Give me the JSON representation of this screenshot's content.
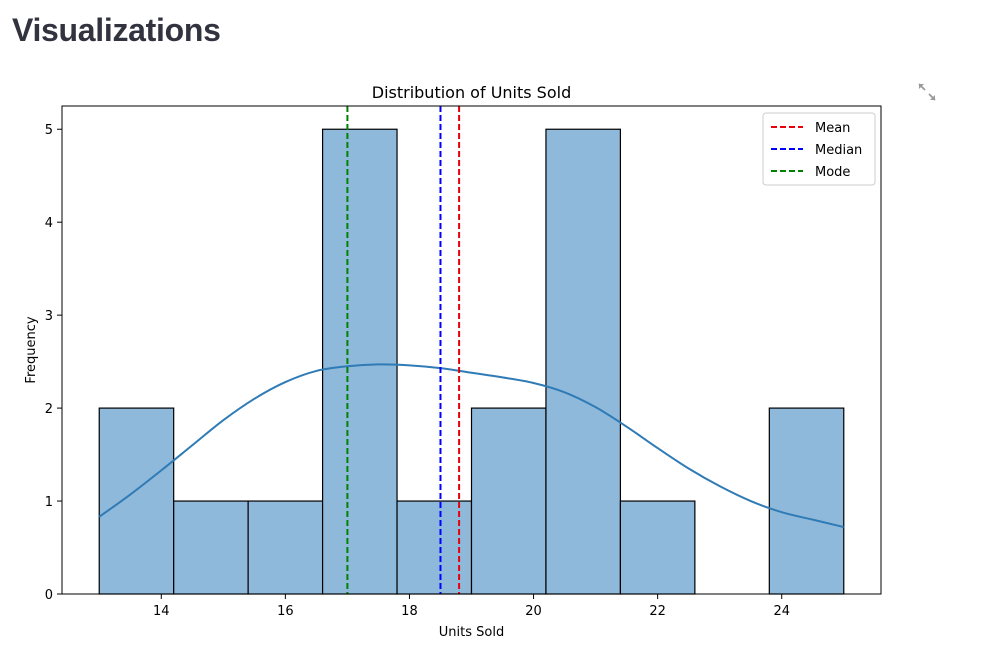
{
  "page": {
    "title": "Visualizations",
    "expand_icon": "expand-arrows-icon"
  },
  "chart_data": {
    "type": "bar",
    "title": "Distribution of Units Sold",
    "xlabel": "Units Sold",
    "ylabel": "Frequency",
    "xlim": [
      12.4,
      25.6
    ],
    "ylim": [
      0,
      5.25
    ],
    "xticks": [
      14,
      16,
      18,
      20,
      22,
      24
    ],
    "yticks": [
      0,
      1,
      2,
      3,
      4,
      5
    ],
    "bin_edges": [
      13,
      14.2,
      15.4,
      16.6,
      17.8,
      19,
      20.2,
      21.4,
      22.6,
      23.8,
      25
    ],
    "counts": [
      2,
      1,
      1,
      5,
      1,
      2,
      5,
      1,
      0,
      2
    ],
    "bar_color": "#8fb9db",
    "edge_color": "#000000",
    "kde": {
      "color": "#2f7bb6",
      "x": [
        13,
        13.5,
        14,
        14.5,
        15,
        15.5,
        16,
        16.5,
        17,
        17.5,
        18,
        18.5,
        19,
        19.5,
        20,
        20.5,
        21,
        21.5,
        22,
        22.5,
        23,
        23.5,
        24,
        24.5,
        25
      ],
      "y": [
        0.83,
        1.07,
        1.33,
        1.6,
        1.87,
        2.1,
        2.28,
        2.4,
        2.45,
        2.47,
        2.46,
        2.43,
        2.38,
        2.33,
        2.27,
        2.17,
        2.01,
        1.8,
        1.57,
        1.35,
        1.16,
        1.0,
        0.88,
        0.8,
        0.72
      ]
    },
    "lines": [
      {
        "name": "Mean",
        "x": 18.8,
        "color": "#e8000b"
      },
      {
        "name": "Median",
        "x": 18.5,
        "color": "#0000ff"
      },
      {
        "name": "Mode",
        "x": 17,
        "color": "#008000"
      }
    ],
    "legend": "top-right",
    "grid": false
  }
}
